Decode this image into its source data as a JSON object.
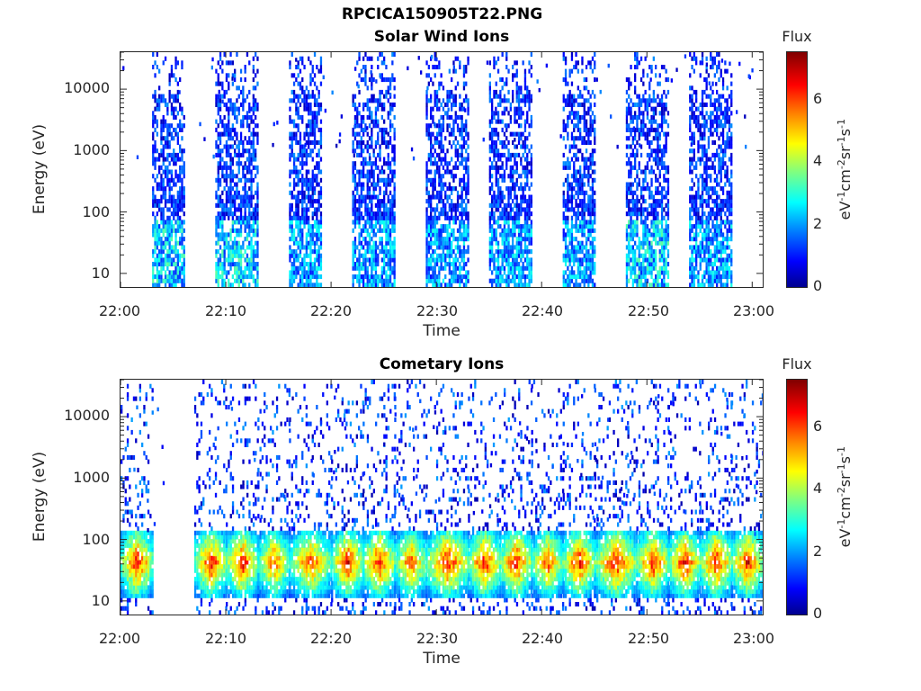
{
  "figure": {
    "title": "RPCICA150905T22.PNG"
  },
  "colorbar": {
    "title": "Flux",
    "ticks": [
      "0",
      "2",
      "4",
      "6"
    ],
    "range": [
      0,
      7.4
    ],
    "colormap": "jet",
    "unit_parts": [
      "eV",
      "-1",
      "cm",
      "-2",
      "sr",
      "-1",
      "s",
      "-1"
    ]
  },
  "chart_data": [
    {
      "type": "heatmap",
      "title": "Solar Wind Ions",
      "xlabel": "Time",
      "ylabel": "Energy (eV)",
      "x_ticks": [
        "22:00",
        "22:10",
        "22:20",
        "22:30",
        "22:40",
        "22:50",
        "23:00"
      ],
      "x_range": [
        "22:00",
        "23:01"
      ],
      "y_scale": "log",
      "y_ticks": [
        10,
        100,
        1000,
        10000
      ],
      "y_tick_labels": [
        "10",
        "100",
        "1000",
        "10000"
      ],
      "y_range": [
        6,
        40000
      ],
      "z_range": [
        0,
        7.4
      ],
      "bursts": [
        {
          "start": "22:03",
          "end": "22:06",
          "peak_flux": 3.5
        },
        {
          "start": "22:09",
          "end": "22:13",
          "peak_flux": 3.5
        },
        {
          "start": "22:16",
          "end": "22:19",
          "peak_flux": 3.0
        },
        {
          "start": "22:22",
          "end": "22:26",
          "peak_flux": 3.0
        },
        {
          "start": "22:29",
          "end": "22:33",
          "peak_flux": 3.0
        },
        {
          "start": "22:35",
          "end": "22:39",
          "peak_flux": 3.0
        },
        {
          "start": "22:42",
          "end": "22:45",
          "peak_flux": 3.0
        },
        {
          "start": "22:48",
          "end": "22:52",
          "peak_flux": 3.5
        },
        {
          "start": "22:54",
          "end": "22:58",
          "peak_flux": 3.0
        }
      ]
    },
    {
      "type": "heatmap",
      "title": "Cometary Ions",
      "xlabel": "Time",
      "ylabel": "Energy (eV)",
      "x_ticks": [
        "22:00",
        "22:10",
        "22:20",
        "22:30",
        "22:40",
        "22:50",
        "23:00"
      ],
      "x_range": [
        "22:00",
        "23:01"
      ],
      "y_scale": "log",
      "y_ticks": [
        10,
        100,
        1000,
        10000
      ],
      "y_tick_labels": [
        "10",
        "100",
        "1000",
        "10000"
      ],
      "y_range": [
        6,
        40000
      ],
      "z_range": [
        0,
        7.4
      ],
      "band_energy_range_eV": [
        12,
        150
      ],
      "bursts": [
        {
          "start": "22:00",
          "end": "22:03",
          "peak_flux": 6.5
        },
        {
          "start": "22:07",
          "end": "22:10",
          "peak_flux": 6.5
        },
        {
          "start": "22:10",
          "end": "22:13",
          "peak_flux": 6.5
        },
        {
          "start": "22:13",
          "end": "22:16",
          "peak_flux": 6.0
        },
        {
          "start": "22:16",
          "end": "22:20",
          "peak_flux": 6.0
        },
        {
          "start": "22:20",
          "end": "22:23",
          "peak_flux": 6.5
        },
        {
          "start": "22:23",
          "end": "22:26",
          "peak_flux": 6.5
        },
        {
          "start": "22:26",
          "end": "22:29",
          "peak_flux": 6.0
        },
        {
          "start": "22:29",
          "end": "22:33",
          "peak_flux": 6.5
        },
        {
          "start": "22:33",
          "end": "22:36",
          "peak_flux": 6.5
        },
        {
          "start": "22:36",
          "end": "22:39",
          "peak_flux": 6.5
        },
        {
          "start": "22:39",
          "end": "22:42",
          "peak_flux": 6.0
        },
        {
          "start": "22:42",
          "end": "22:45",
          "peak_flux": 6.5
        },
        {
          "start": "22:45",
          "end": "22:49",
          "peak_flux": 6.5
        },
        {
          "start": "22:49",
          "end": "22:52",
          "peak_flux": 6.5
        },
        {
          "start": "22:52",
          "end": "22:55",
          "peak_flux": 6.5
        },
        {
          "start": "22:55",
          "end": "22:58",
          "peak_flux": 6.5
        },
        {
          "start": "22:58",
          "end": "23:01",
          "peak_flux": 6.5
        }
      ]
    }
  ]
}
